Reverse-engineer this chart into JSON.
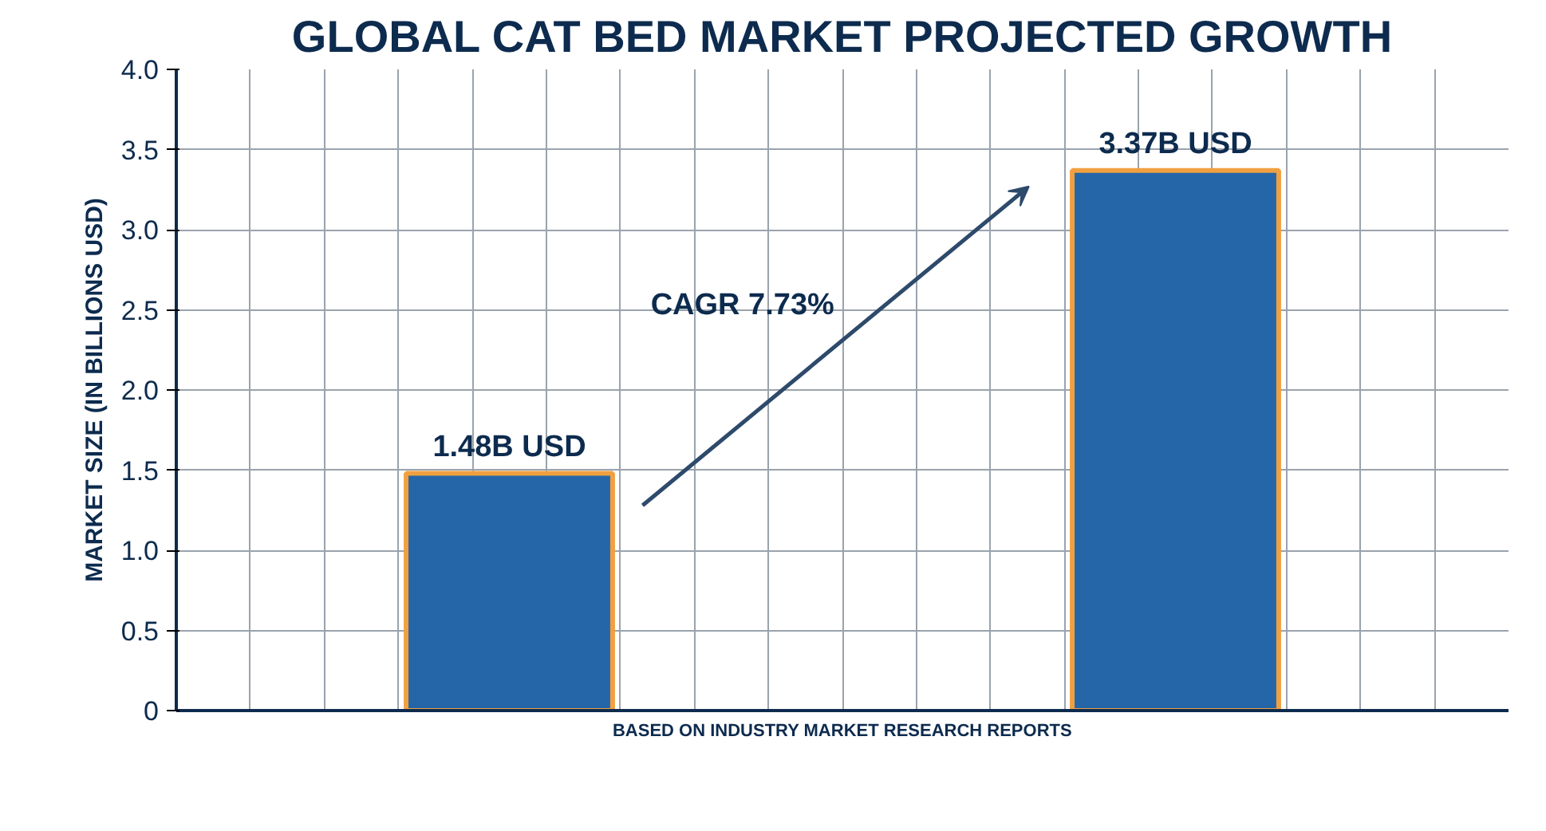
{
  "chart_data": {
    "type": "bar",
    "title": "GLOBAL CAT BED MARKET PROJECTED GROWTH",
    "ylabel": "MARKET SIZE (IN BILLIONS USD)",
    "categories": [
      null,
      null
    ],
    "values": [
      1.48,
      3.37
    ],
    "value_labels": [
      "1.48B USD",
      "3.37B USD"
    ],
    "color": "#2566a8",
    "ylim": [
      0,
      4
    ],
    "yticks": [
      0,
      {
        "value": 0.5,
        "label": "0.5"
      },
      {
        "value": 1,
        "label": "1.0"
      },
      {
        "value": 1.5,
        "label": "1.5"
      },
      {
        "value": 2,
        "label": "2.0"
      },
      {
        "value": 2.5,
        "label": "2.5"
      },
      {
        "value": 3,
        "label": "3.0"
      },
      {
        "value": 3.5,
        "label": "3.5"
      },
      {
        "value": 4,
        "label": "4.0"
      }
    ],
    "grid": true,
    "annotations": [
      "CAGR 7.73%",
      "BASED ON INDUSTRY MARKET RESEARCH REPORTS"
    ]
  }
}
